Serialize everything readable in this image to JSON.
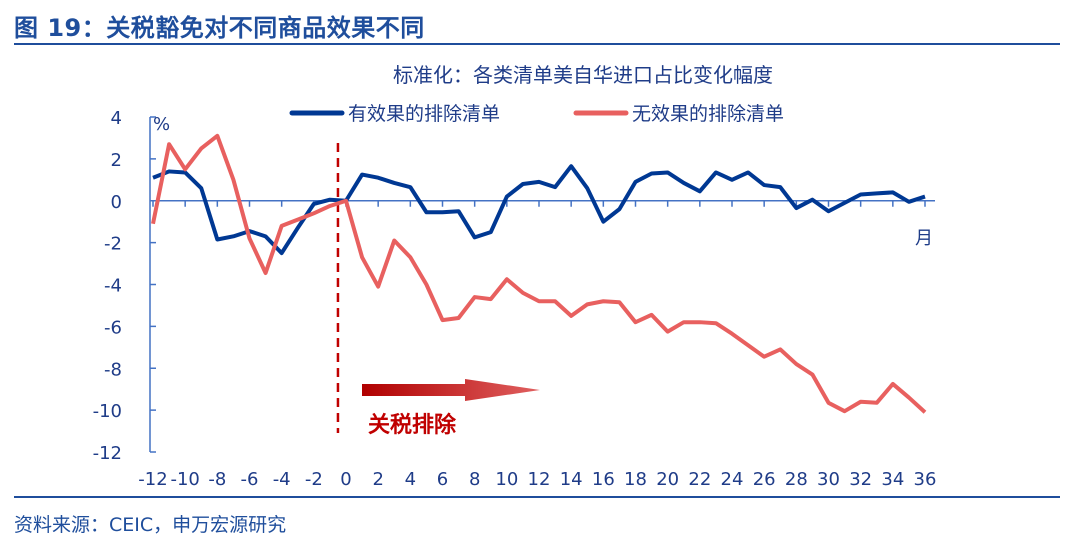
{
  "header": {
    "title": "图 19：关税豁免对不同商品效果不同"
  },
  "footer": {
    "source": "资料来源：CEIC，申万宏源研究"
  },
  "chart_data": {
    "type": "line",
    "title": "",
    "subtitle": "标准化：各类清单美自华进口占比变化幅度",
    "ylabel": "%",
    "xlabel": "月",
    "xlim": [
      -12,
      36
    ],
    "ylim": [
      -12,
      4
    ],
    "xticks": [
      -12,
      -10,
      -8,
      -6,
      -4,
      -2,
      0,
      2,
      4,
      6,
      8,
      10,
      12,
      14,
      16,
      18,
      20,
      22,
      24,
      26,
      28,
      30,
      32,
      34,
      36
    ],
    "yticks": [
      4,
      2,
      0,
      -2,
      -4,
      -6,
      -8,
      -10,
      -12
    ],
    "grid": false,
    "legend": "top",
    "x": [
      -12,
      -11,
      -10,
      -9,
      -8,
      -7,
      -6,
      -5,
      -4,
      -3,
      -2,
      -1,
      0,
      1,
      2,
      3,
      4,
      5,
      6,
      7,
      8,
      9,
      10,
      11,
      12,
      13,
      14,
      15,
      16,
      17,
      18,
      19,
      20,
      21,
      22,
      23,
      24,
      25,
      26,
      27,
      28,
      29,
      30,
      31,
      32,
      33,
      34,
      35,
      36
    ],
    "series": [
      {
        "name": "有效果的排除清单",
        "color": "#003893",
        "values": [
          1.1,
          1.4,
          1.35,
          0.6,
          -1.85,
          -1.7,
          -1.45,
          -1.7,
          -2.5,
          -1.3,
          -0.15,
          0.05,
          0.0,
          1.25,
          1.1,
          0.85,
          0.65,
          -0.55,
          -0.55,
          -0.5,
          -1.75,
          -1.5,
          0.2,
          0.8,
          0.9,
          0.65,
          1.65,
          0.6,
          -1.0,
          -0.4,
          0.9,
          1.3,
          1.35,
          0.85,
          0.45,
          1.35,
          1.0,
          1.35,
          0.75,
          0.65,
          -0.35,
          0.05,
          -0.5,
          -0.1,
          0.3,
          0.35,
          0.4,
          -0.05,
          0.2
        ]
      },
      {
        "name": "无效果的排除清单",
        "color": "#e8605f",
        "values": [
          -1.1,
          2.7,
          1.5,
          2.5,
          3.1,
          1.0,
          -1.8,
          -3.45,
          -1.2,
          -0.9,
          -0.6,
          -0.25,
          0.0,
          -2.7,
          -4.1,
          -1.9,
          -2.7,
          -4.0,
          -5.7,
          -5.6,
          -4.6,
          -4.7,
          -3.75,
          -4.4,
          -4.8,
          -4.8,
          -5.5,
          -4.95,
          -4.8,
          -4.85,
          -5.8,
          -5.45,
          -6.25,
          -5.8,
          -5.8,
          -5.85,
          -6.35,
          -6.9,
          -7.45,
          -7.1,
          -7.8,
          -8.3,
          -9.65,
          -10.05,
          -9.6,
          -9.65,
          -8.75,
          -9.4,
          -10.1
        ]
      }
    ],
    "annotations": [
      {
        "type": "vline-dashed",
        "x": -0.5,
        "color": "#c00000"
      },
      {
        "type": "arrow",
        "text": "关税排除",
        "color": "#c00000"
      }
    ],
    "axis_color": "#4472c4"
  }
}
